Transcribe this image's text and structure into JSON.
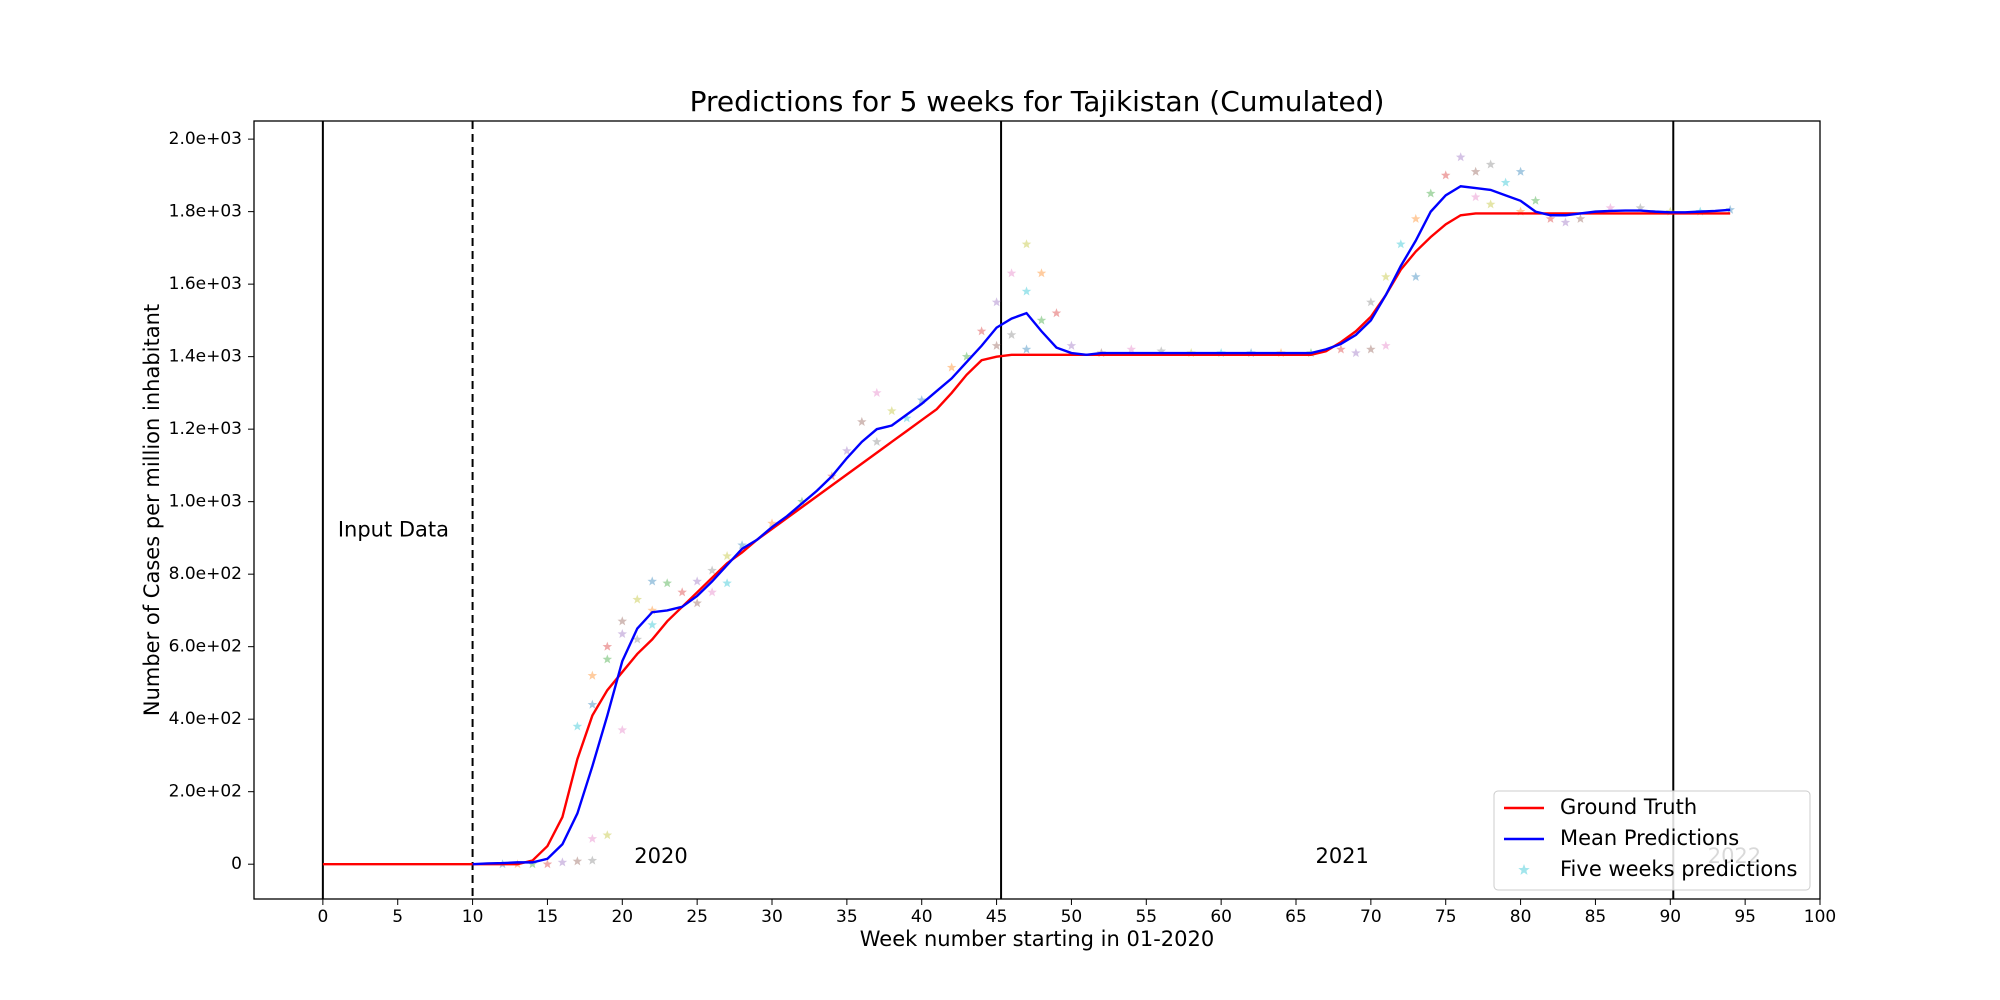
{
  "chart_data": {
    "type": "line",
    "title": "Predictions for 5 weeks for Tajikistan (Cumulated)",
    "x_label": "Week number starting in 01-2020",
    "y_label": "Number of Cases per million inhabitant",
    "xlim": [
      -4.6,
      100
    ],
    "ylim": [
      -96,
      2050
    ],
    "xticks": [
      0,
      5,
      10,
      15,
      20,
      25,
      30,
      35,
      40,
      45,
      50,
      55,
      60,
      65,
      70,
      75,
      80,
      85,
      90,
      95,
      100
    ],
    "yticks": [
      0,
      {
        "value": 200,
        "label": "2.0e+02"
      },
      {
        "value": 400,
        "label": "4.0e+02"
      },
      {
        "value": 600,
        "label": "6.0e+02"
      },
      {
        "value": 800,
        "label": "8.0e+02"
      },
      {
        "value": 1000,
        "label": "1.0e+03"
      },
      {
        "value": 1200,
        "label": "1.2e+03"
      },
      {
        "value": 1400,
        "label": "1.4e+03"
      },
      {
        "value": 1600,
        "label": "1.6e+03"
      },
      {
        "value": 1800,
        "label": "1.8e+03"
      },
      {
        "value": 2000,
        "label": "2.0e+03"
      }
    ],
    "grid": false,
    "legend": "lower right",
    "vlines": [
      {
        "x": 0,
        "style": "solid"
      },
      {
        "x": 10,
        "style": "dashed"
      },
      {
        "x": 45.3,
        "style": "solid"
      },
      {
        "x": 90.2,
        "style": "solid"
      }
    ],
    "annotations": [
      {
        "text": "Input Data",
        "x": 1,
        "y": 920,
        "color": "#000000"
      },
      {
        "text": "2020",
        "x": 20.8,
        "y": 20,
        "color": "#000000"
      },
      {
        "text": "2021",
        "x": 66.3,
        "y": 20,
        "color": "#000000"
      },
      {
        "text": "2022",
        "x": 92.5,
        "y": 20,
        "color": "#cccccc"
      }
    ],
    "series": [
      {
        "name": "Ground Truth",
        "type": "line",
        "color": "#ff0000",
        "x": [
          0,
          1,
          2,
          3,
          4,
          5,
          6,
          7,
          8,
          9,
          10,
          11,
          12,
          13,
          14,
          15,
          16,
          17,
          18,
          19,
          20,
          21,
          22,
          23,
          24,
          25,
          26,
          27,
          28,
          29,
          30,
          31,
          32,
          33,
          34,
          35,
          36,
          37,
          38,
          39,
          40,
          41,
          42,
          43,
          44,
          45,
          46,
          47,
          48,
          49,
          50,
          51,
          52,
          53,
          54,
          55,
          56,
          57,
          58,
          59,
          60,
          61,
          62,
          63,
          64,
          65,
          66,
          67,
          68,
          69,
          70,
          71,
          72,
          73,
          74,
          75,
          76,
          77,
          78,
          79,
          80,
          81,
          82,
          83,
          84,
          85,
          86,
          87,
          88,
          89,
          90,
          91,
          92,
          93,
          94
        ],
        "values": [
          0,
          0,
          0,
          0,
          0,
          0,
          0,
          0,
          0,
          0,
          0,
          0,
          0,
          0,
          10,
          50,
          130,
          290,
          410,
          480,
          530,
          580,
          620,
          670,
          710,
          750,
          790,
          830,
          860,
          895,
          925,
          955,
          985,
          1015,
          1045,
          1075,
          1105,
          1135,
          1165,
          1195,
          1225,
          1255,
          1300,
          1350,
          1390,
          1400,
          1405,
          1405,
          1405,
          1405,
          1405,
          1405,
          1405,
          1405,
          1405,
          1405,
          1405,
          1405,
          1405,
          1405,
          1405,
          1405,
          1405,
          1405,
          1405,
          1405,
          1405,
          1415,
          1440,
          1470,
          1510,
          1570,
          1640,
          1690,
          1730,
          1765,
          1790,
          1795,
          1795,
          1795,
          1795,
          1795,
          1795,
          1795,
          1795,
          1795,
          1795,
          1795,
          1795,
          1795,
          1795,
          1795,
          1795,
          1795,
          1795
        ]
      },
      {
        "name": "Mean Predictions",
        "type": "line",
        "color": "#0000ff",
        "x": [
          10,
          11,
          12,
          13,
          14,
          15,
          16,
          17,
          18,
          19,
          20,
          21,
          22,
          23,
          24,
          25,
          26,
          27,
          28,
          29,
          30,
          31,
          32,
          33,
          34,
          35,
          36,
          37,
          38,
          39,
          40,
          41,
          42,
          43,
          44,
          45,
          46,
          47,
          48,
          49,
          50,
          51,
          52,
          53,
          54,
          55,
          56,
          57,
          58,
          59,
          60,
          61,
          62,
          63,
          64,
          65,
          66,
          67,
          68,
          69,
          70,
          71,
          72,
          73,
          74,
          75,
          76,
          77,
          78,
          79,
          80,
          81,
          82,
          83,
          84,
          85,
          86,
          87,
          88,
          89,
          90,
          91,
          92,
          93,
          94
        ],
        "values": [
          0,
          2,
          3,
          5,
          5,
          15,
          55,
          140,
          270,
          410,
          560,
          650,
          695,
          700,
          710,
          740,
          780,
          825,
          870,
          895,
          930,
          960,
          995,
          1030,
          1070,
          1120,
          1165,
          1200,
          1210,
          1240,
          1270,
          1305,
          1340,
          1385,
          1430,
          1480,
          1505,
          1520,
          1470,
          1425,
          1410,
          1405,
          1410,
          1410,
          1410,
          1410,
          1410,
          1410,
          1410,
          1410,
          1410,
          1410,
          1410,
          1410,
          1410,
          1410,
          1410,
          1420,
          1435,
          1460,
          1500,
          1570,
          1650,
          1720,
          1800,
          1845,
          1870,
          1865,
          1860,
          1845,
          1830,
          1800,
          1790,
          1790,
          1795,
          1800,
          1802,
          1803,
          1803,
          1800,
          1798,
          1798,
          1800,
          1802,
          1805
        ]
      },
      {
        "name": "Five weeks predictions",
        "type": "scatter",
        "color": "#17becf",
        "point_colors": [
          "#1f77b4",
          "#ff7f0e",
          "#2ca02c",
          "#d62728",
          "#9467bd",
          "#8c564b",
          "#e377c2",
          "#7f7f7f",
          "#bcbd22",
          "#17becf"
        ],
        "x": [
          12,
          13,
          14,
          15,
          16,
          17,
          18,
          18,
          19,
          17,
          18,
          18,
          19,
          19,
          20,
          20,
          20,
          21,
          21,
          22,
          22,
          22,
          23,
          24,
          25,
          25,
          26,
          26,
          27,
          27,
          28,
          30,
          32,
          34,
          35,
          36,
          37,
          37,
          38,
          39,
          40,
          42,
          43,
          44,
          45,
          45,
          46,
          46,
          47,
          47,
          47,
          48,
          48,
          49,
          50,
          52,
          54,
          56,
          58,
          60,
          62,
          64,
          66,
          68,
          69,
          70,
          71,
          70,
          71,
          72,
          73,
          73,
          74,
          75,
          76,
          77,
          77,
          78,
          78,
          79,
          80,
          80,
          81,
          82,
          83,
          84,
          86,
          88,
          90,
          92,
          94
        ],
        "values": [
          0,
          0,
          0,
          0,
          5,
          8,
          70,
          10,
          80,
          380,
          440,
          520,
          565,
          600,
          635,
          670,
          370,
          620,
          730,
          660,
          780,
          700,
          775,
          750,
          780,
          720,
          750,
          810,
          850,
          775,
          880,
          940,
          1000,
          1070,
          1140,
          1220,
          1300,
          1165,
          1250,
          1230,
          1280,
          1370,
          1400,
          1470,
          1550,
          1430,
          1630,
          1460,
          1710,
          1580,
          1420,
          1630,
          1500,
          1520,
          1430,
          1410,
          1420,
          1415,
          1410,
          1410,
          1410,
          1410,
          1410,
          1420,
          1410,
          1420,
          1430,
          1550,
          1620,
          1710,
          1620,
          1780,
          1850,
          1900,
          1950,
          1910,
          1840,
          1930,
          1820,
          1880,
          1910,
          1800,
          1830,
          1780,
          1770,
          1780,
          1810,
          1810,
          1800,
          1800,
          1805
        ]
      }
    ]
  }
}
